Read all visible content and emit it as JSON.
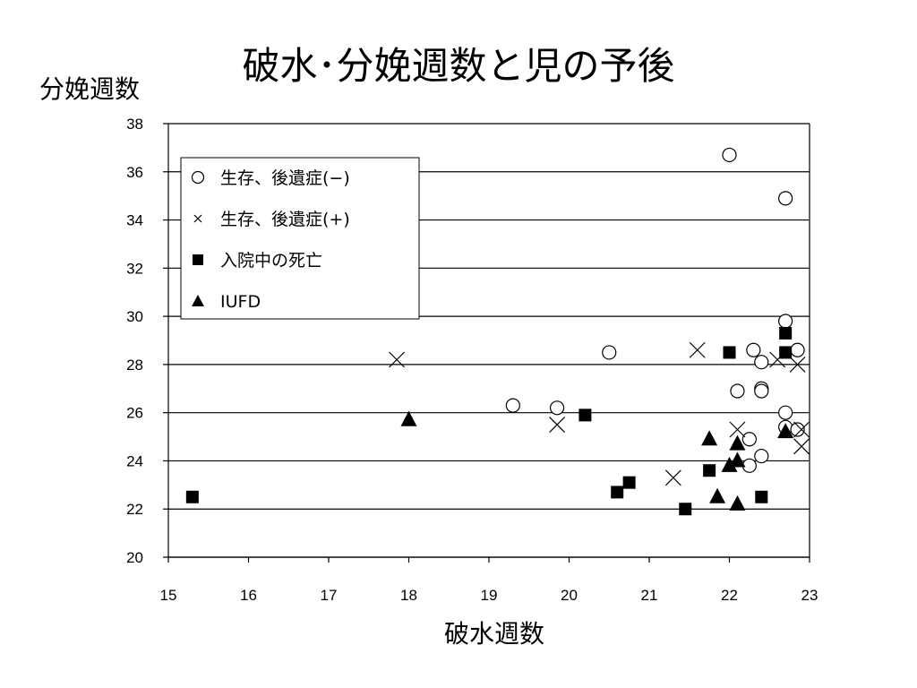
{
  "chart_data": {
    "type": "scatter",
    "title": "破水･分娩週数と児の予後",
    "xlabel": "破水週数",
    "ylabel": "分娩週数",
    "xlim": [
      15,
      23
    ],
    "ylim": [
      20,
      38
    ],
    "x_ticks": [
      "15",
      "16",
      "17",
      "18",
      "19",
      "20",
      "21",
      "22",
      "23"
    ],
    "y_ticks": [
      "20",
      "22",
      "24",
      "26",
      "28",
      "30",
      "32",
      "34",
      "36",
      "38"
    ],
    "grid": "horizontal",
    "legend_position": "top-left",
    "series": [
      {
        "name": "生存、後遺症(−)",
        "marker": "circle-open",
        "points": [
          [
            22.0,
            36.7
          ],
          [
            22.7,
            34.9
          ],
          [
            22.7,
            29.8
          ],
          [
            22.85,
            28.6
          ],
          [
            22.3,
            28.6
          ],
          [
            22.4,
            28.1
          ],
          [
            20.5,
            28.5
          ],
          [
            19.3,
            26.3
          ],
          [
            19.85,
            26.2
          ],
          [
            22.1,
            26.9
          ],
          [
            22.4,
            27.0
          ],
          [
            22.4,
            26.9
          ],
          [
            22.7,
            26.0
          ],
          [
            22.7,
            25.4
          ],
          [
            22.85,
            25.3
          ],
          [
            22.25,
            24.9
          ],
          [
            22.4,
            24.2
          ],
          [
            22.25,
            23.8
          ]
        ]
      },
      {
        "name": "生存、後遺症(+)",
        "marker": "x",
        "points": [
          [
            17.85,
            28.2
          ],
          [
            21.6,
            28.6
          ],
          [
            22.6,
            28.2
          ],
          [
            22.85,
            28.0
          ],
          [
            19.85,
            25.5
          ],
          [
            22.1,
            25.3
          ],
          [
            22.9,
            25.3
          ],
          [
            22.9,
            24.6
          ],
          [
            21.3,
            23.3
          ]
        ]
      },
      {
        "name": "入院中の死亡",
        "marker": "square",
        "points": [
          [
            15.3,
            22.5
          ],
          [
            20.2,
            25.9
          ],
          [
            20.6,
            22.7
          ],
          [
            20.75,
            23.1
          ],
          [
            21.45,
            22.0
          ],
          [
            21.75,
            23.6
          ],
          [
            22.0,
            28.5
          ],
          [
            22.7,
            29.3
          ],
          [
            22.7,
            28.5
          ],
          [
            22.4,
            22.5
          ]
        ]
      },
      {
        "name": "IUFD",
        "marker": "triangle",
        "points": [
          [
            18.0,
            25.7
          ],
          [
            21.75,
            24.9
          ],
          [
            21.85,
            22.5
          ],
          [
            22.0,
            23.8
          ],
          [
            22.1,
            24.0
          ],
          [
            22.1,
            24.7
          ],
          [
            22.1,
            22.2
          ],
          [
            22.7,
            25.2
          ]
        ]
      }
    ]
  }
}
